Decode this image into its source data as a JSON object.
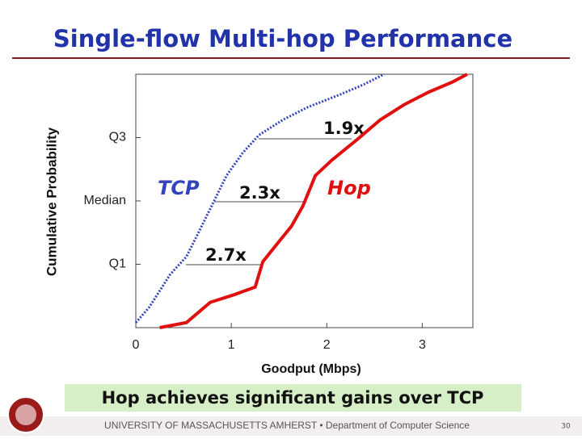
{
  "chart_data": {
    "type": "line",
    "title": "Single-flow Multi-hop Performance",
    "xlabel": "Goodput (Mbps)",
    "ylabel": "Cumulative Probability",
    "xlim": [
      0,
      3.53
    ],
    "ylim": [
      0,
      1
    ],
    "xticks": [
      0,
      1,
      2,
      3
    ],
    "yticks": [
      {
        "value": 0.25,
        "label": "Q1"
      },
      {
        "value": 0.5,
        "label": "Median"
      },
      {
        "value": 0.75,
        "label": "Q3"
      }
    ],
    "series": [
      {
        "name": "TCP",
        "color": "#3344bb",
        "dashed": true,
        "x": [
          0,
          0.14,
          0.36,
          0.53,
          0.65,
          0.82,
          0.95,
          1.12,
          1.29,
          1.54,
          1.8,
          2.14,
          2.39,
          2.6
        ],
        "values": [
          0.02,
          0.08,
          0.21,
          0.28,
          0.37,
          0.5,
          0.6,
          0.69,
          0.76,
          0.82,
          0.87,
          0.92,
          0.96,
          1.0
        ]
      },
      {
        "name": "Hop",
        "color": "#e01010",
        "dashed": false,
        "x": [
          0.25,
          0.53,
          0.78,
          1.03,
          1.25,
          1.33,
          1.5,
          1.63,
          1.75,
          1.88,
          2.05,
          2.31,
          2.56,
          2.81,
          3.07,
          3.32,
          3.47
        ],
        "values": [
          0.0,
          0.02,
          0.1,
          0.13,
          0.16,
          0.26,
          0.34,
          0.4,
          0.48,
          0.6,
          0.66,
          0.74,
          0.82,
          0.88,
          0.93,
          0.97,
          1.0
        ]
      }
    ],
    "annotations": [
      "1.9x",
      "2.3x",
      "2.7x"
    ]
  },
  "slide": {
    "caption": "Hop achieves significant gains over TCP",
    "footer": "UNIVERSITY OF MASSACHUSETTS AMHERST • Department of Computer Science",
    "page": "30"
  }
}
